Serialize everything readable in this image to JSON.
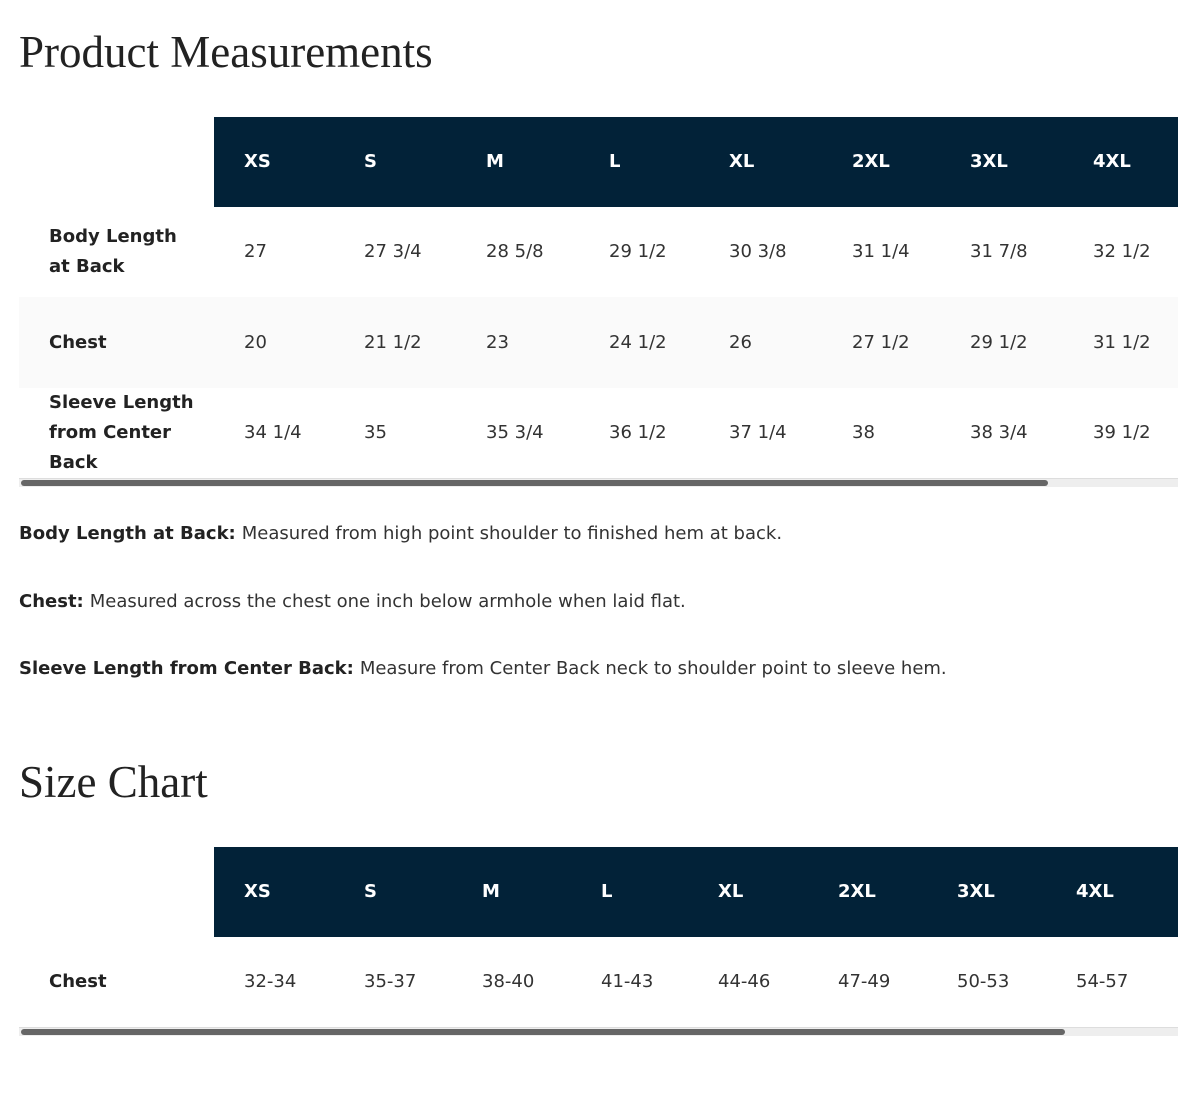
{
  "measurements": {
    "title": "Product Measurements",
    "table": {
      "header": [
        "XS",
        "S",
        "M",
        "L",
        "XL",
        "2XL",
        "3XL",
        "4XL"
      ],
      "rows": [
        {
          "label": "Body Length at Back",
          "values": [
            "27",
            "27 3/4",
            "28 5/8",
            "29 1/2",
            "30 3/8",
            "31 1/4",
            "31 7/8",
            "32 1/2"
          ]
        },
        {
          "label": "Chest",
          "values": [
            "20",
            "21 1/2",
            "23",
            "24 1/2",
            "26",
            "27 1/2",
            "29 1/2",
            "31 1/2"
          ]
        },
        {
          "label": "Sleeve Length from Center Back",
          "values": [
            "34 1/4",
            "35",
            "35 3/4",
            "36 1/2",
            "37 1/4",
            "38",
            "38 3/4",
            "39 1/2"
          ]
        }
      ]
    },
    "notes": [
      {
        "term": "Body Length at Back:",
        "text": "Measured from high point shoulder to finished hem at back."
      },
      {
        "term": "Chest:",
        "text": "Measured across the chest one inch below armhole when laid flat."
      },
      {
        "term": "Sleeve Length from Center Back:",
        "text": "Measure from Center Back neck to shoulder point to sleeve hem."
      }
    ]
  },
  "size_chart": {
    "title": "Size Chart",
    "table": {
      "header": [
        "XS",
        "S",
        "M",
        "L",
        "XL",
        "2XL",
        "3XL",
        "4XL"
      ],
      "rows": [
        {
          "label": "Chest",
          "values": [
            "32-34",
            "35-37",
            "38-40",
            "41-43",
            "44-46",
            "47-49",
            "50-53",
            "54-57"
          ]
        }
      ]
    }
  }
}
